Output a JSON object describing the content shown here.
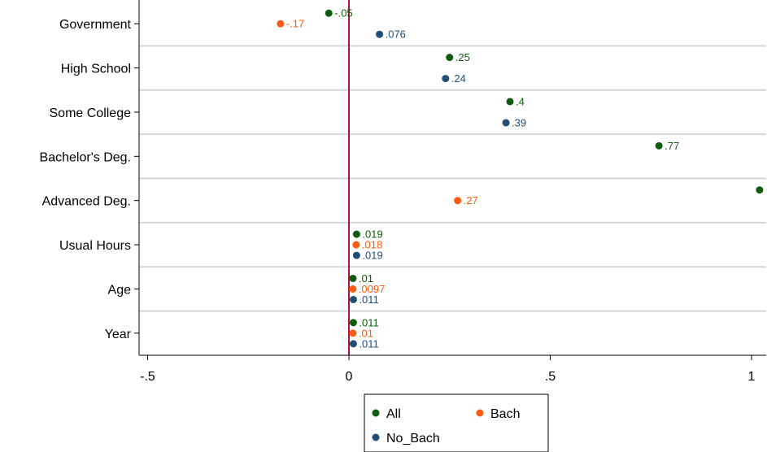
{
  "chart_data": {
    "type": "scatter",
    "categories": [
      "Government",
      "High School",
      "Some College",
      "Bachelor's Deg.",
      "Advanced Deg.",
      "Usual Hours",
      "Age",
      "Year"
    ],
    "xlim": [
      -0.5,
      1
    ],
    "xticks": [
      -0.5,
      0,
      0.5,
      1
    ],
    "xtick_labels": [
      "-.5",
      "0",
      ".5",
      "1"
    ],
    "reference_line_x": 0,
    "grid": "horizontal",
    "legend_placement": "bottom",
    "series": [
      {
        "name": "All",
        "color": "#0f5c0f",
        "points": [
          {
            "category": "Government",
            "value": -0.05,
            "label": "-.05"
          },
          {
            "category": "High School",
            "value": 0.25,
            "label": ".25"
          },
          {
            "category": "Some College",
            "value": 0.4,
            "label": ".4"
          },
          {
            "category": "Bachelor's Deg.",
            "value": 0.77,
            "label": ".77"
          },
          {
            "category": "Advanced Deg.",
            "value": 1.02,
            "label": ""
          },
          {
            "category": "Usual Hours",
            "value": 0.019,
            "label": ".019"
          },
          {
            "category": "Age",
            "value": 0.01,
            "label": ".01"
          },
          {
            "category": "Year",
            "value": 0.011,
            "label": ".011"
          }
        ]
      },
      {
        "name": "Bach",
        "color": "#ff5a14",
        "points": [
          {
            "category": "Government",
            "value": -0.17,
            "label": "-.17"
          },
          {
            "category": "Advanced Deg.",
            "value": 0.27,
            "label": ".27"
          },
          {
            "category": "Usual Hours",
            "value": 0.018,
            "label": ".018"
          },
          {
            "category": "Age",
            "value": 0.0097,
            "label": ".0097"
          },
          {
            "category": "Year",
            "value": 0.01,
            "label": ".01"
          }
        ]
      },
      {
        "name": "No_Bach",
        "color": "#1f4e79",
        "points": [
          {
            "category": "Government",
            "value": 0.076,
            "label": ".076"
          },
          {
            "category": "High School",
            "value": 0.24,
            "label": ".24"
          },
          {
            "category": "Some College",
            "value": 0.39,
            "label": ".39"
          },
          {
            "category": "Usual Hours",
            "value": 0.019,
            "label": ".019"
          },
          {
            "category": "Age",
            "value": 0.011,
            "label": ".011"
          },
          {
            "category": "Year",
            "value": 0.011,
            "label": ".011"
          }
        ]
      }
    ],
    "legend": [
      "All",
      "Bach",
      "No_Bach"
    ]
  }
}
